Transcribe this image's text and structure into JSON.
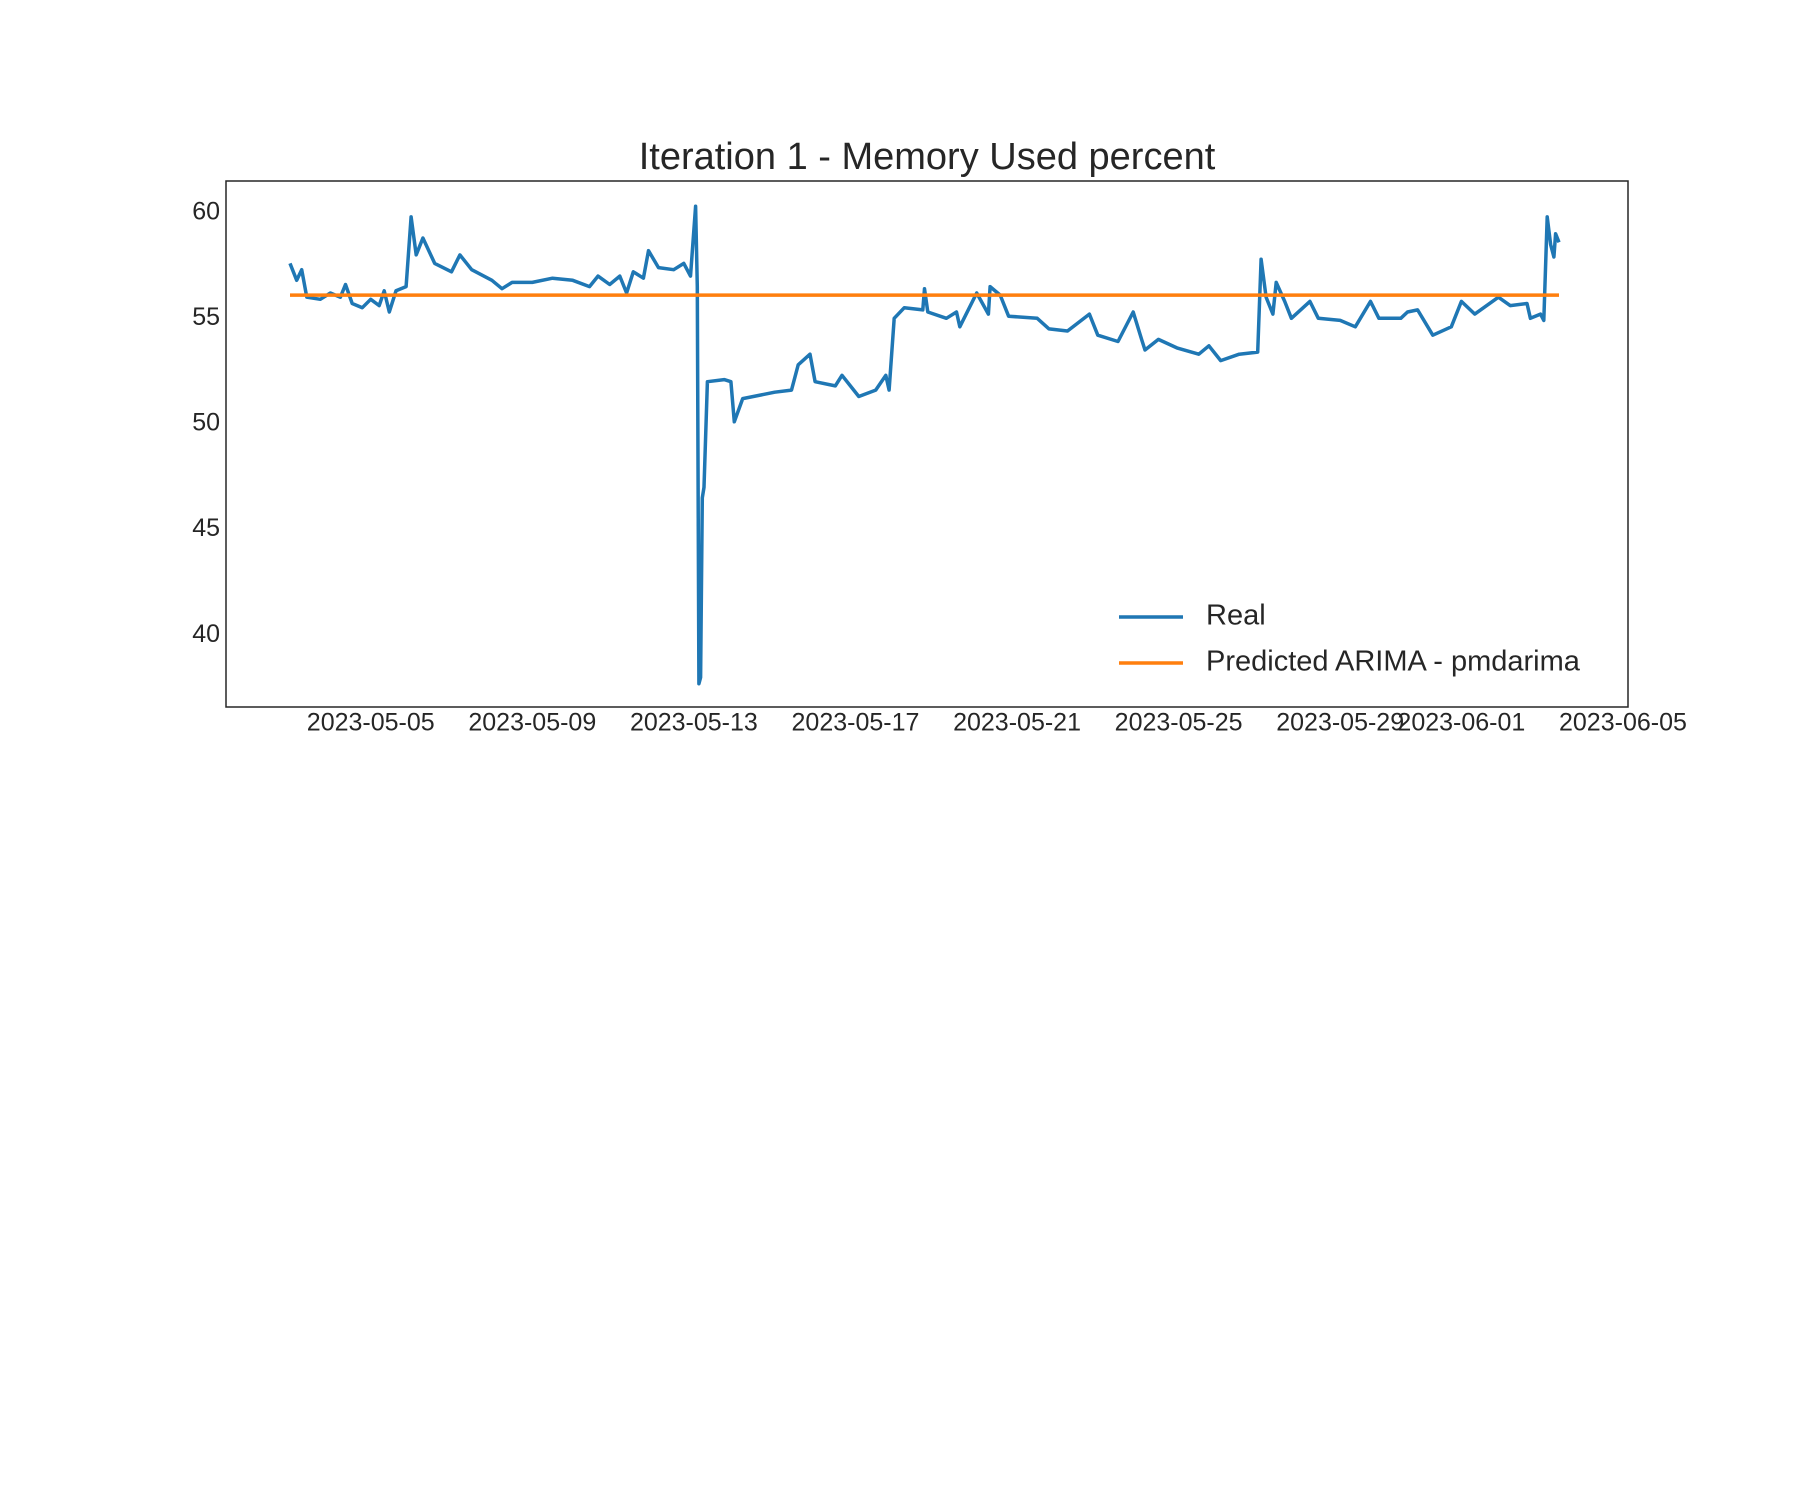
{
  "chart_data": {
    "type": "line",
    "title": "Iteration 1 - Memory Used percent",
    "xlim": [
      "2023-05-01 10:00",
      "2023-06-05 03:00"
    ],
    "xticks": [
      "2023-05-05",
      "2023-05-09",
      "2023-05-13",
      "2023-05-17",
      "2023-05-21",
      "2023-05-25",
      "2023-05-29",
      "2023-06-01",
      "2023-06-05"
    ],
    "ylim": [
      36.6,
      61.5
    ],
    "yticks": [
      40,
      45,
      50,
      55,
      60
    ],
    "grid": false,
    "legend": "lower right",
    "series": [
      {
        "name": "Real",
        "color": "#1f77b4",
        "x": [
          "2023-05-03 00:00",
          "2023-05-03 04:00",
          "2023-05-03 07:00",
          "2023-05-03 10:00",
          "2023-05-03 18:00",
          "2023-05-04 00:00",
          "2023-05-04 06:00",
          "2023-05-04 09:00",
          "2023-05-04 13:00",
          "2023-05-04 19:00",
          "2023-05-05 00:00",
          "2023-05-05 05:00",
          "2023-05-05 08:00",
          "2023-05-05 11:00",
          "2023-05-05 15:00",
          "2023-05-05 21:00",
          "2023-05-06 00:00",
          "2023-05-06 03:00",
          "2023-05-06 07:00",
          "2023-05-06 14:00",
          "2023-05-07 00:00",
          "2023-05-07 05:00",
          "2023-05-07 12:00",
          "2023-05-08 00:00",
          "2023-05-08 06:00",
          "2023-05-08 12:00",
          "2023-05-09 00:00",
          "2023-05-09 12:00",
          "2023-05-10 00:00",
          "2023-05-10 10:00",
          "2023-05-10 15:00",
          "2023-05-10 22:00",
          "2023-05-11 04:00",
          "2023-05-11 08:00",
          "2023-05-11 12:00",
          "2023-05-11 18:00",
          "2023-05-11 21:00",
          "2023-05-12 03:00",
          "2023-05-12 12:00",
          "2023-05-12 18:00",
          "2023-05-12 22:00",
          "2023-05-13 01:00",
          "2023-05-13 02:00",
          "2023-05-13 03:00",
          "2023-05-13 04:00",
          "2023-05-13 05:00",
          "2023-05-13 06:00",
          "2023-05-13 08:00",
          "2023-05-13 18:00",
          "2023-05-13 22:00",
          "2023-05-14 00:00",
          "2023-05-14 05:00",
          "2023-05-15 00:00",
          "2023-05-15 10:00",
          "2023-05-15 14:00",
          "2023-05-15 21:00",
          "2023-05-16 00:00",
          "2023-05-16 12:00",
          "2023-05-16 16:00",
          "2023-05-17 02:00",
          "2023-05-17 12:00",
          "2023-05-17 18:00",
          "2023-05-17 20:00",
          "2023-05-17 23:00",
          "2023-05-18 05:00",
          "2023-05-18 16:00",
          "2023-05-18 17:00",
          "2023-05-18 19:00",
          "2023-05-19 06:00",
          "2023-05-19 12:00",
          "2023-05-19 14:00",
          "2023-05-20 00:00",
          "2023-05-20 07:00",
          "2023-05-20 08:00",
          "2023-05-20 14:00",
          "2023-05-20 19:00",
          "2023-05-21 12:00",
          "2023-05-21 19:00",
          "2023-05-22 06:00",
          "2023-05-22 19:00",
          "2023-05-23 00:00",
          "2023-05-23 12:00",
          "2023-05-23 21:00",
          "2023-05-24 02:00",
          "2023-05-24 04:00",
          "2023-05-24 12:00",
          "2023-05-24 23:00",
          "2023-05-25 12:00",
          "2023-05-25 18:00",
          "2023-05-26 01:00",
          "2023-05-26 12:00",
          "2023-05-26 23:00",
          "2023-05-27 01:00",
          "2023-05-27 04:00",
          "2023-05-27 08:00",
          "2023-05-27 10:00",
          "2023-05-27 15:00",
          "2023-05-27 19:00",
          "2023-05-28 06:00",
          "2023-05-28 11:00",
          "2023-05-29 00:00",
          "2023-05-29 09:00",
          "2023-05-29 18:00",
          "2023-05-29 23:00",
          "2023-05-30 12:00",
          "2023-05-30 16:00",
          "2023-05-30 22:00",
          "2023-05-31 07:00",
          "2023-05-31 18:00",
          "2023-06-01 00:00",
          "2023-06-01 08:00",
          "2023-06-01 22:00",
          "2023-06-02 05:00",
          "2023-06-02 15:00",
          "2023-06-02 17:00",
          "2023-06-02 23:00",
          "2023-06-03 01:00",
          "2023-06-03 03:00",
          "2023-06-03 05:00",
          "2023-06-03 07:00",
          "2023-06-03 08:00",
          "2023-06-03 10:00"
        ],
        "values": [
          57.6,
          56.8,
          57.3,
          56.0,
          55.9,
          56.2,
          56.0,
          56.6,
          55.7,
          55.5,
          55.9,
          55.6,
          56.3,
          55.3,
          56.3,
          56.5,
          59.8,
          58.0,
          58.8,
          57.6,
          57.2,
          58.0,
          57.3,
          56.8,
          56.4,
          56.7,
          56.7,
          56.9,
          56.8,
          56.5,
          57.0,
          56.6,
          57.0,
          56.2,
          57.2,
          56.9,
          58.2,
          57.4,
          57.3,
          57.6,
          57.0,
          60.3,
          56.5,
          37.7,
          38.0,
          46.5,
          47.0,
          52.0,
          52.1,
          52.0,
          50.1,
          51.2,
          51.5,
          51.6,
          52.8,
          53.3,
          52.0,
          51.8,
          52.3,
          51.3,
          51.6,
          52.3,
          51.6,
          55.0,
          55.5,
          55.4,
          56.4,
          55.3,
          55.0,
          55.3,
          54.6,
          56.2,
          55.2,
          56.5,
          56.1,
          55.1,
          55.0,
          54.5,
          54.4,
          55.2,
          54.2,
          53.9,
          55.3,
          54.0,
          53.5,
          54.0,
          53.6,
          53.3,
          53.7,
          53.0,
          53.3,
          53.4,
          57.8,
          56.0,
          55.2,
          56.7,
          55.8,
          55.0,
          55.8,
          55.0,
          54.9,
          54.6,
          55.8,
          55.0,
          55.0,
          55.3,
          55.4,
          54.2,
          54.6,
          55.8,
          55.2,
          56.0,
          55.6,
          55.7,
          55.0,
          55.2,
          54.9,
          59.8,
          58.5,
          57.9,
          59.0,
          58.6
        ]
      },
      {
        "name": "Predicted ARIMA - pmdarima",
        "color": "#ff7f0e",
        "x": [
          "2023-05-03 00:00",
          "2023-06-03 10:00"
        ],
        "values": [
          56.1,
          56.1
        ]
      }
    ]
  }
}
